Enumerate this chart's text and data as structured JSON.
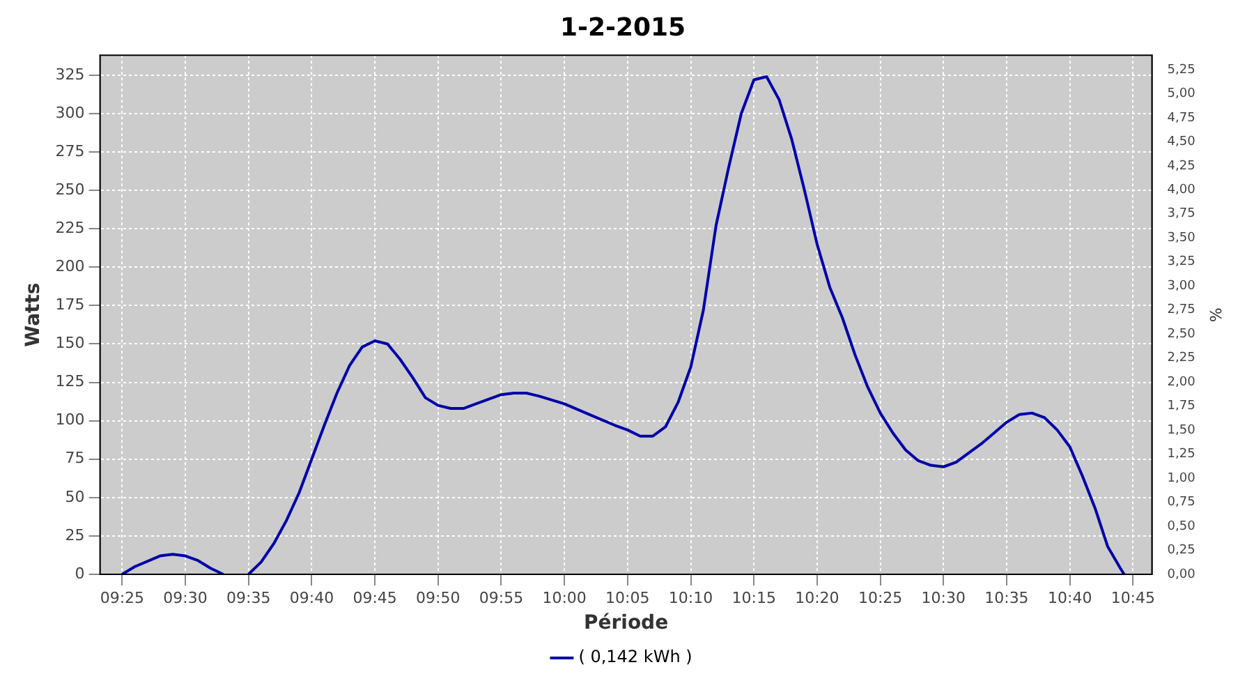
{
  "chart_data": {
    "type": "line",
    "title": "1-2-2015",
    "xlabel": "Période",
    "ylabel": "Watts",
    "y2label": "%",
    "x": [
      9.4167,
      9.4333,
      9.4667,
      9.4833,
      9.5,
      9.5167,
      9.5333,
      9.55,
      9.5667,
      9.5833,
      9.6,
      9.6167,
      9.6333,
      9.65,
      9.6667,
      9.6833,
      9.7,
      9.7167,
      9.7333,
      9.75,
      9.7667,
      9.7833,
      9.8,
      9.8167,
      9.8333,
      9.85,
      9.8667,
      9.8833,
      9.9167,
      9.9333,
      9.95,
      9.9667,
      10,
      10.0333,
      10.0667,
      10.0833,
      10.1,
      10.1167,
      10.1333,
      10.15,
      10.1667,
      10.1833,
      10.2,
      10.2167,
      10.2333,
      10.25,
      10.2667,
      10.2833,
      10.3,
      10.3167,
      10.3333,
      10.35,
      10.3667,
      10.3833,
      10.4,
      10.4167,
      10.4333,
      10.45,
      10.4667,
      10.4833,
      10.5,
      10.5167,
      10.5333,
      10.55,
      10.5667,
      10.5833,
      10.6,
      10.6167,
      10.6333,
      10.65,
      10.6667,
      10.6833,
      10.7,
      10.7167,
      10.7333,
      10.7383
    ],
    "series": [
      {
        "name": "( 0,142 kWh )",
        "color": "#0000aa",
        "values": [
          0,
          5,
          12,
          13,
          12,
          9,
          4,
          0,
          null,
          0,
          8,
          20,
          35,
          53,
          75,
          97,
          118,
          136,
          148,
          152,
          150,
          140,
          128,
          115,
          110,
          108,
          108,
          111,
          117,
          118,
          118,
          116,
          111,
          104,
          97,
          94,
          90,
          90,
          96,
          112,
          135,
          172,
          227,
          265,
          300,
          322,
          324,
          309,
          283,
          250,
          215,
          187,
          167,
          143,
          122,
          105,
          92,
          81,
          74,
          71,
          70,
          73,
          79,
          85,
          92,
          99,
          104,
          105,
          102,
          94,
          83,
          64,
          43,
          18,
          4,
          0
        ]
      }
    ],
    "xlim": [
      9.3875,
      10.775
    ],
    "xticks": [
      {
        "value": 9.4167,
        "label": "09:25"
      },
      {
        "value": 9.5,
        "label": "09:30"
      },
      {
        "value": 9.5833,
        "label": "09:35"
      },
      {
        "value": 9.6667,
        "label": "09:40"
      },
      {
        "value": 9.75,
        "label": "09:45"
      },
      {
        "value": 9.8333,
        "label": "09:50"
      },
      {
        "value": 9.9167,
        "label": "09:55"
      },
      {
        "value": 10,
        "label": "10:00"
      },
      {
        "value": 10.0833,
        "label": "10:05"
      },
      {
        "value": 10.1667,
        "label": "10:10"
      },
      {
        "value": 10.25,
        "label": "10:15"
      },
      {
        "value": 10.3333,
        "label": "10:20"
      },
      {
        "value": 10.4167,
        "label": "10:25"
      },
      {
        "value": 10.5,
        "label": "10:30"
      },
      {
        "value": 10.5833,
        "label": "10:35"
      },
      {
        "value": 10.6667,
        "label": "10:40"
      },
      {
        "value": 10.75,
        "label": "10:45"
      }
    ],
    "ylim": [
      0,
      338
    ],
    "yticks": [
      0,
      25,
      50,
      75,
      100,
      125,
      150,
      175,
      200,
      225,
      250,
      275,
      300,
      325
    ],
    "y2lim": [
      0,
      5.4
    ],
    "y2ticks": [
      {
        "value": 0,
        "label": "0,00"
      },
      {
        "value": 0.25,
        "label": "0,25"
      },
      {
        "value": 0.5,
        "label": "0,50"
      },
      {
        "value": 0.75,
        "label": "0,75"
      },
      {
        "value": 1,
        "label": "1,00"
      },
      {
        "value": 1.25,
        "label": "1,25"
      },
      {
        "value": 1.5,
        "label": "1,50"
      },
      {
        "value": 1.75,
        "label": "1,75"
      },
      {
        "value": 2,
        "label": "2,00"
      },
      {
        "value": 2.25,
        "label": "2,25"
      },
      {
        "value": 2.5,
        "label": "2,50"
      },
      {
        "value": 2.75,
        "label": "2,75"
      },
      {
        "value": 3,
        "label": "3,00"
      },
      {
        "value": 3.25,
        "label": "3,25"
      },
      {
        "value": 3.5,
        "label": "3,50"
      },
      {
        "value": 3.75,
        "label": "3,75"
      },
      {
        "value": 4,
        "label": "4,00"
      },
      {
        "value": 4.25,
        "label": "4,25"
      },
      {
        "value": 4.5,
        "label": "4,50"
      },
      {
        "value": 4.75,
        "label": "4,75"
      },
      {
        "value": 5,
        "label": "5,00"
      },
      {
        "value": 5.25,
        "label": "5,25"
      }
    ],
    "grid": true,
    "legend": "bottom",
    "marker": "none",
    "line_style": "solid"
  }
}
